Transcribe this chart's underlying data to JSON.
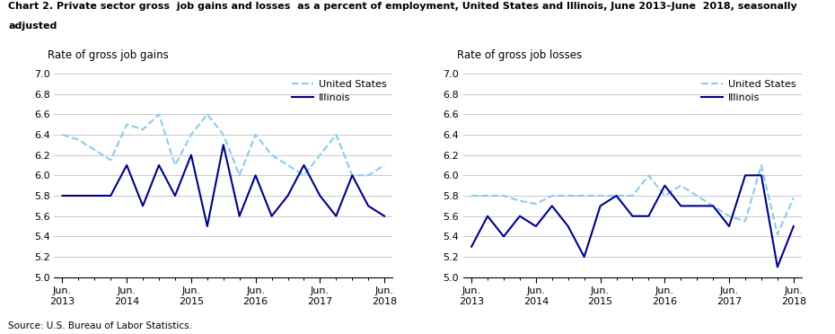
{
  "title_line1": "Chart 2. Private sector gross  job gains and losses  as a percent of employment, United States and Illinois, June 2013–June  2018, seasonally",
  "title_line2": "adjusted",
  "source": "Source: U.S. Bureau of Labor Statistics.",
  "left_ylabel": "Rate of gross job gains",
  "right_ylabel": "Rate of gross job losses",
  "ylim": [
    5.0,
    7.0
  ],
  "yticks": [
    5.0,
    5.2,
    5.4,
    5.6,
    5.8,
    6.0,
    6.2,
    6.4,
    6.6,
    6.8,
    7.0
  ],
  "xtick_labels": [
    "Jun.\n2013",
    "Jun.\n2014",
    "Jun.\n2015",
    "Jun.\n2016",
    "Jun.\n2017",
    "Jun.\n2018"
  ],
  "xtick_positions": [
    0,
    4,
    8,
    12,
    16,
    20
  ],
  "gains_us": [
    6.4,
    6.35,
    6.25,
    6.15,
    6.5,
    6.45,
    6.6,
    6.1,
    6.4,
    6.6,
    6.4,
    6.0,
    6.4,
    6.2,
    6.1,
    6.0,
    6.2,
    6.4,
    6.0,
    6.0,
    6.1
  ],
  "gains_il": [
    5.8,
    5.8,
    5.8,
    5.8,
    6.1,
    5.7,
    6.1,
    5.8,
    6.2,
    5.5,
    6.3,
    5.6,
    6.0,
    5.6,
    5.8,
    6.1,
    5.8,
    5.6,
    6.0,
    5.7,
    5.6
  ],
  "losses_us": [
    5.8,
    5.8,
    5.8,
    5.75,
    5.72,
    5.8,
    5.8,
    5.8,
    5.8,
    5.8,
    5.8,
    6.0,
    5.8,
    5.9,
    5.8,
    5.7,
    5.6,
    5.55,
    6.1,
    5.42,
    5.78
  ],
  "losses_il": [
    5.3,
    5.6,
    5.4,
    5.6,
    5.5,
    5.7,
    5.5,
    5.2,
    5.7,
    5.8,
    5.6,
    5.6,
    5.9,
    5.7,
    5.7,
    5.7,
    5.5,
    6.0,
    6.0,
    5.1,
    5.5
  ],
  "us_color": "#87CEEB",
  "il_color": "#00008B",
  "linewidth": 1.5,
  "n_points": 21,
  "legend_us": "United States",
  "legend_il": "Illinois",
  "minor_xticks": [
    1,
    2,
    3,
    5,
    6,
    7,
    9,
    10,
    11,
    13,
    14,
    15,
    17,
    18,
    19
  ]
}
